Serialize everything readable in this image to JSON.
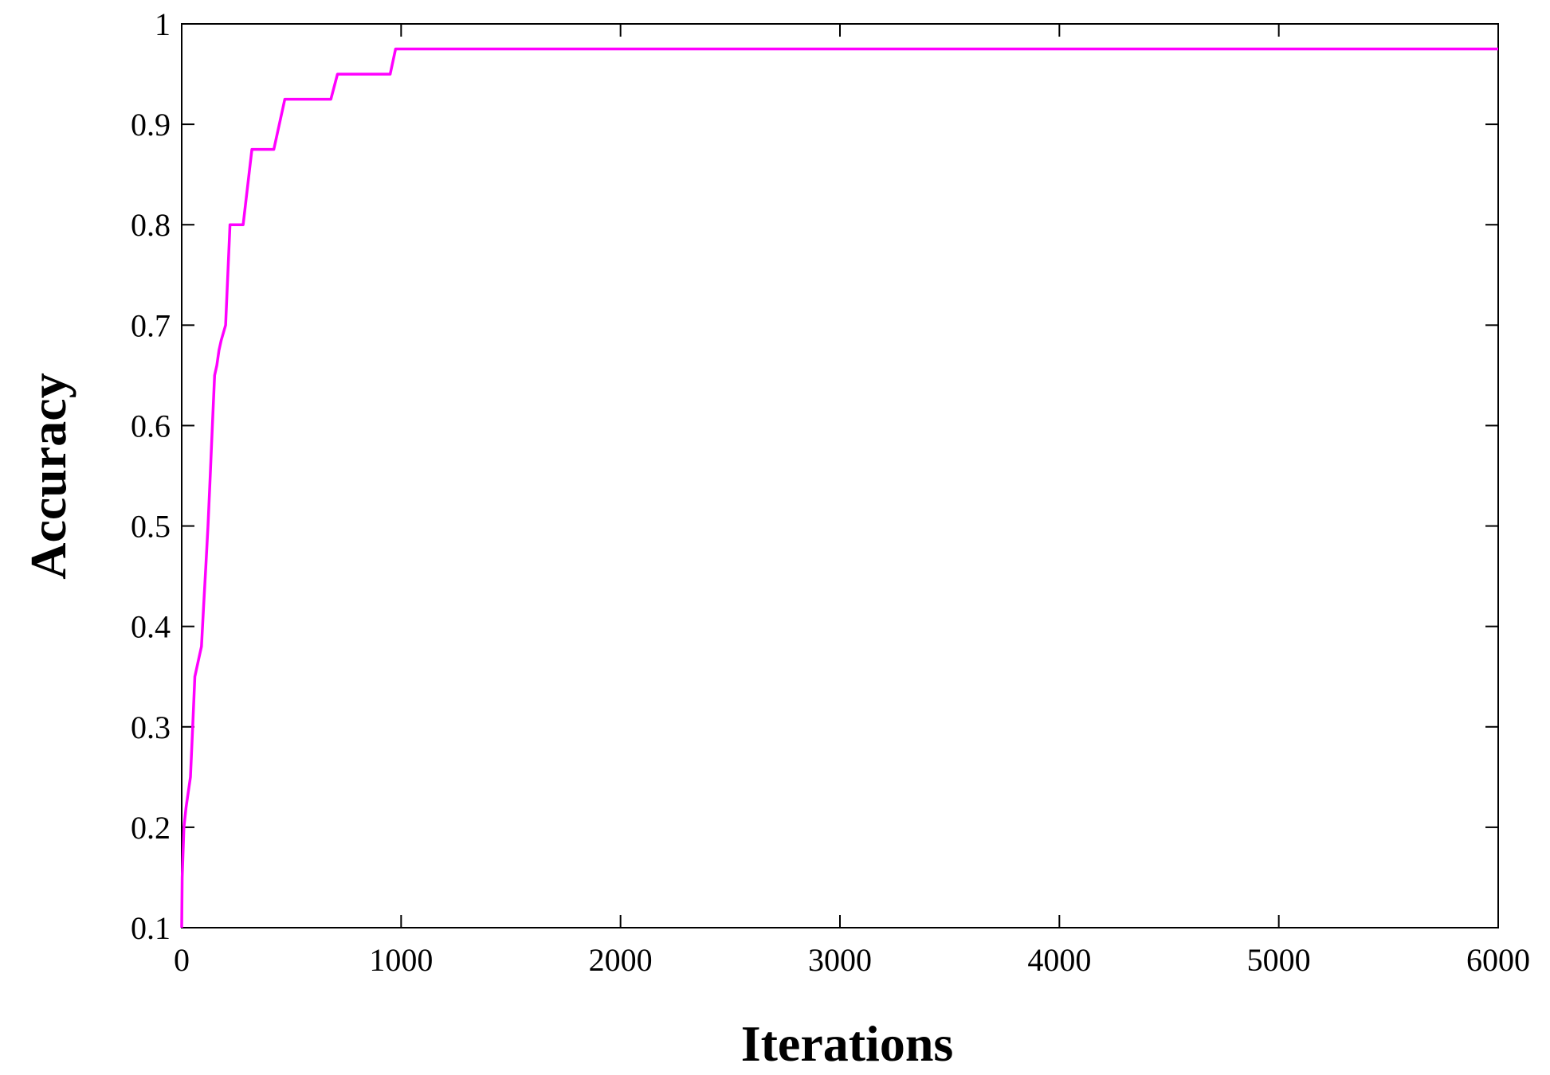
{
  "chart_data": {
    "type": "line",
    "title": "",
    "xlabel": "Iterations",
    "ylabel": "Accuracy",
    "xlim": [
      0,
      6000
    ],
    "ylim": [
      0.1,
      1
    ],
    "x_ticks": [
      0,
      1000,
      2000,
      3000,
      4000,
      5000,
      6000
    ],
    "x_tick_labels": [
      "0",
      "1000",
      "2000",
      "3000",
      "4000",
      "5000",
      "6000"
    ],
    "y_ticks": [
      0.1,
      0.2,
      0.3,
      0.4,
      0.5,
      0.6,
      0.7,
      0.8,
      0.9,
      1
    ],
    "y_tick_labels": [
      "0.1",
      "0.2",
      "0.3",
      "0.4",
      "0.5",
      "0.6",
      "0.7",
      "0.8",
      "0.9",
      "1"
    ],
    "grid": false,
    "legend": "none",
    "series": [
      {
        "color": "#ff00ff",
        "x": [
          0,
          2,
          10,
          20,
          40,
          50,
          60,
          80,
          90,
          100,
          110,
          120,
          130,
          140,
          150,
          160,
          170,
          180,
          200,
          220,
          250,
          280,
          320,
          360,
          420,
          470,
          520,
          580,
          680,
          710,
          760,
          850,
          950,
          975,
          1000,
          2000,
          3000,
          4000,
          5000,
          6000
        ],
        "y": [
          0.1,
          0.15,
          0.2,
          0.22,
          0.25,
          0.3,
          0.35,
          0.37,
          0.38,
          0.42,
          0.46,
          0.5,
          0.55,
          0.6,
          0.65,
          0.66,
          0.675,
          0.685,
          0.7,
          0.8,
          0.8,
          0.8,
          0.875,
          0.875,
          0.875,
          0.925,
          0.925,
          0.925,
          0.925,
          0.95,
          0.95,
          0.95,
          0.95,
          0.975,
          0.975,
          0.975,
          0.975,
          0.975,
          0.975,
          0.975
        ]
      }
    ]
  }
}
